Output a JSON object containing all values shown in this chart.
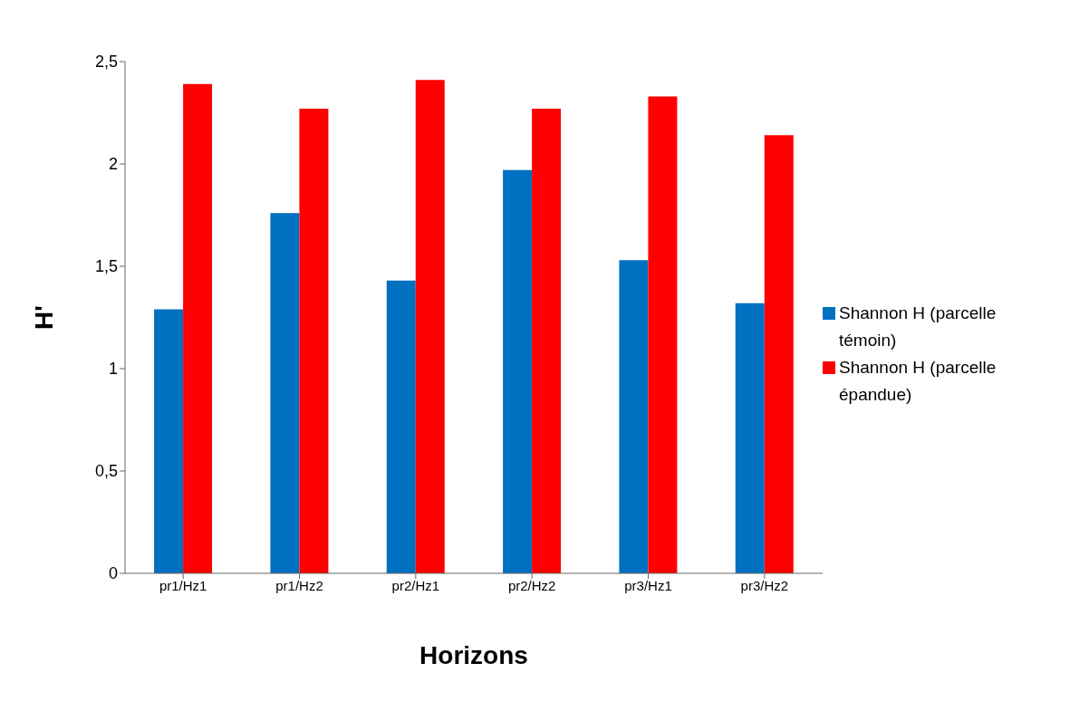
{
  "chart_data": {
    "type": "bar",
    "xlabel": "Horizons",
    "ylabel": "H'",
    "categories": [
      "pr1/Hz1",
      "pr1/Hz2",
      "pr2/Hz1",
      "pr2/Hz2",
      "pr3/Hz1",
      "pr3/Hz2"
    ],
    "series": [
      {
        "name": "Shannon H (parcelle témoin)",
        "color": "#0070c0",
        "values": [
          1.29,
          1.76,
          1.43,
          1.97,
          1.53,
          1.32
        ]
      },
      {
        "name": "Shannon H (parcelle épandue)",
        "color": "#ff0000",
        "values": [
          2.39,
          2.27,
          2.41,
          2.27,
          2.33,
          2.14
        ]
      }
    ],
    "ylim": [
      0,
      2.5
    ],
    "yticks": [
      0,
      {
        "value": 0.5,
        "label": "0,5"
      },
      1,
      {
        "value": 1.5,
        "label": "1,5"
      },
      2,
      {
        "value": 2.5,
        "label": "2,5"
      }
    ],
    "grid": false,
    "legend": "right"
  }
}
